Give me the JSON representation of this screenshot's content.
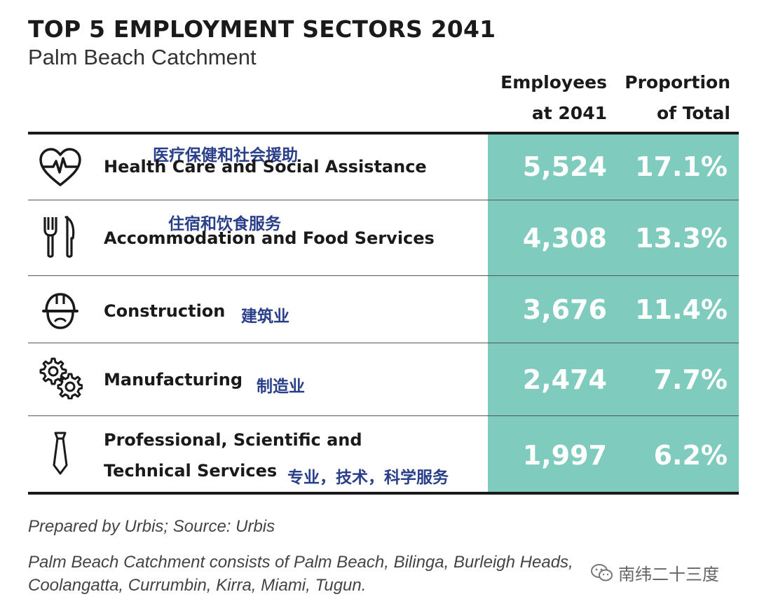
{
  "chart_data": {
    "type": "table",
    "title": "TOP 5 EMPLOYMENT SECTORS 2041",
    "subtitle": "Palm Beach Catchment",
    "columns": {
      "employees_line1": "Employees",
      "employees_line2": "at 2041",
      "proportion_line1": "Proportion",
      "proportion_line2": "of Total"
    },
    "rows": [
      {
        "sector": "Health Care and Social Assistance",
        "sector_cn": "医疗保健和社会援助",
        "employees": "5,524",
        "proportion": "17.1%",
        "icon": "heart-pulse-icon"
      },
      {
        "sector": "Accommodation and Food Services",
        "sector_cn": "住宿和饮食服务",
        "employees": "4,308",
        "proportion": "13.3%",
        "icon": "fork-knife-icon"
      },
      {
        "sector": "Construction",
        "sector_cn": "建筑业",
        "employees": "3,676",
        "proportion": "11.4%",
        "icon": "hard-hat-icon"
      },
      {
        "sector": "Manufacturing",
        "sector_cn": "制造业",
        "employees": "2,474",
        "proportion": "7.7%",
        "icon": "gears-icon"
      },
      {
        "sector_line1": "Professional, Scientific and",
        "sector_line2": "Technical Services",
        "sector_cn": "专业，技术，科学服务",
        "employees": "1,997",
        "proportion": "6.2%",
        "icon": "necktie-icon"
      }
    ],
    "values_employees": [
      5524,
      4308,
      3676,
      2474,
      1997
    ],
    "values_proportion_pct": [
      17.1,
      13.3,
      11.4,
      7.7,
      6.2
    ],
    "highlight_color": "#7fcbbd"
  },
  "footer": {
    "prepared": "Prepared by Urbis; Source: Urbis",
    "note_line1": "Palm Beach Catchment consists of Palm Beach, Bilinga, Burleigh Heads,",
    "note_line2": "Coolangatta, Currumbin, Kirra, Miami, Tugun."
  },
  "watermark": {
    "text": "南纬二十三度",
    "icon": "wechat-icon"
  }
}
